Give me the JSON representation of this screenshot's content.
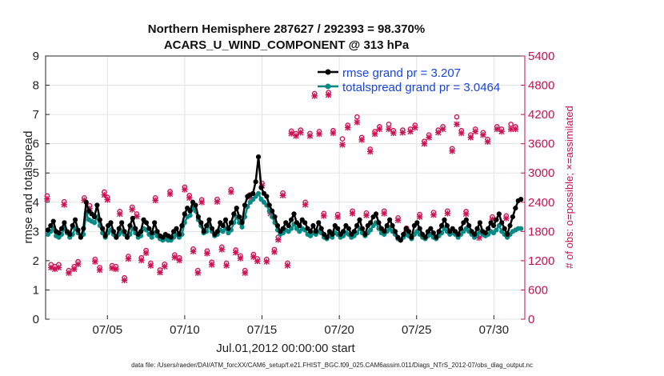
{
  "chart_data": {
    "type": "line",
    "title_line1": "Northern Hemisphere 287627 / 292393 = 98.370%",
    "title_line2": "ACARS_U_WIND_COMPONENT @ 313 hPa",
    "xlabel": "Jul.01,2012 00:00:00 start",
    "ylabel": "rmse and totalspread",
    "y2label": "# of obs: o=possible; ×=assimilated",
    "xlim": [
      1,
      32
    ],
    "ylim": [
      0,
      9
    ],
    "y2lim": [
      0,
      5400
    ],
    "x_ticks": [
      5,
      10,
      15,
      20,
      25,
      30
    ],
    "x_tick_labels": [
      "07/05",
      "07/10",
      "07/15",
      "07/20",
      "07/25",
      "07/30"
    ],
    "y_ticks": [
      0,
      1,
      2,
      3,
      4,
      5,
      6,
      7,
      8,
      9
    ],
    "y_tick_labels": [
      "0",
      "1",
      "2",
      "3",
      "4",
      "5",
      "6",
      "7",
      "8",
      "9"
    ],
    "y2_ticks": [
      0,
      600,
      1200,
      1800,
      2400,
      3000,
      3600,
      4200,
      4800,
      5400
    ],
    "y2_tick_labels": [
      "0",
      "600",
      "1200",
      "1800",
      "2400",
      "3000",
      "3600",
      "4200",
      "4800",
      "5400"
    ],
    "grid": true,
    "legend_position": "top-right",
    "series": [
      {
        "name": "rmse grand pr = 3.207",
        "color": "#000000",
        "values": [
          3.05,
          3.2,
          3.35,
          3.0,
          2.95,
          3.1,
          3.3,
          3.0,
          2.9,
          3.2,
          3.4,
          3.05,
          2.8,
          3.1,
          4.0,
          3.7,
          3.6,
          3.5,
          3.9,
          3.4,
          3.1,
          2.85,
          3.2,
          3.3,
          3.0,
          2.8,
          3.1,
          3.3,
          3.0,
          2.8,
          3.2,
          3.45,
          3.1,
          2.9,
          3.0,
          3.4,
          3.3,
          3.1,
          2.95,
          3.3,
          3.0,
          2.85,
          2.8,
          2.9,
          2.85,
          2.8,
          3.0,
          3.1,
          2.9,
          3.2,
          3.6,
          3.8,
          3.7,
          4.0,
          3.9,
          3.5,
          3.3,
          3.0,
          3.2,
          3.4,
          3.1,
          2.9,
          3.0,
          3.3,
          3.2,
          3.4,
          3.1,
          3.3,
          3.6,
          3.8,
          3.5,
          3.3,
          3.9,
          4.2,
          4.25,
          4.3,
          4.7,
          5.55,
          4.5,
          4.3,
          4.2,
          3.9,
          3.7,
          3.5,
          3.2,
          3.0,
          3.1,
          3.3,
          3.2,
          3.4,
          3.6,
          3.3,
          3.2,
          3.4,
          3.3,
          3.1,
          3.0,
          3.2,
          3.0,
          3.3,
          3.1,
          2.9,
          2.8,
          3.0,
          2.9,
          3.2,
          3.1,
          2.9,
          3.0,
          3.2,
          3.1,
          2.9,
          3.0,
          3.2,
          3.4,
          3.1,
          2.9,
          3.2,
          3.3,
          3.5,
          3.6,
          3.3,
          3.1,
          3.0,
          3.2,
          3.4,
          3.2,
          3.0,
          2.8,
          2.7,
          2.9,
          3.1,
          3.0,
          2.8,
          3.2,
          3.3,
          3.1,
          2.9,
          2.8,
          3.0,
          3.1,
          2.95,
          2.8,
          3.0,
          3.2,
          3.4,
          3.2,
          3.0,
          3.1,
          3.0,
          2.9,
          3.1,
          3.3,
          3.4,
          3.2,
          3.0,
          2.9,
          3.1,
          3.3,
          3.0,
          2.95,
          3.1,
          3.3,
          3.2,
          3.4,
          3.6,
          3.3,
          3.1,
          2.9,
          3.2,
          3.5,
          3.8,
          4.05,
          4.1
        ]
      },
      {
        "name": "totalspread grand pr = 3.0464",
        "color": "#0a8a85",
        "values": [
          2.9,
          3.0,
          3.1,
          2.85,
          2.8,
          2.9,
          3.1,
          2.95,
          2.8,
          2.9,
          3.1,
          2.95,
          2.85,
          2.9,
          3.6,
          3.4,
          3.35,
          3.3,
          3.5,
          3.2,
          2.95,
          2.8,
          2.95,
          3.05,
          2.9,
          2.8,
          2.9,
          3.0,
          2.9,
          2.8,
          2.9,
          3.1,
          2.95,
          2.8,
          2.85,
          3.1,
          3.05,
          2.9,
          2.8,
          2.95,
          2.85,
          2.75,
          2.7,
          2.75,
          2.7,
          2.7,
          2.8,
          2.9,
          2.8,
          2.9,
          3.3,
          3.5,
          3.55,
          3.8,
          3.7,
          3.4,
          3.2,
          2.95,
          3.0,
          3.2,
          3.0,
          2.85,
          2.9,
          3.05,
          3.0,
          3.1,
          2.95,
          3.05,
          3.3,
          3.5,
          3.3,
          3.15,
          3.5,
          3.85,
          4.0,
          4.1,
          4.2,
          4.3,
          4.1,
          4.0,
          3.9,
          3.7,
          3.5,
          3.3,
          3.05,
          2.9,
          2.95,
          3.05,
          3.0,
          3.1,
          3.25,
          3.1,
          3.0,
          3.1,
          3.05,
          2.9,
          2.85,
          2.95,
          2.9,
          3.0,
          2.95,
          2.8,
          2.75,
          2.85,
          2.8,
          2.95,
          2.9,
          2.8,
          2.85,
          2.95,
          2.9,
          2.8,
          2.85,
          2.95,
          3.1,
          2.95,
          2.85,
          2.95,
          3.05,
          3.2,
          3.3,
          3.1,
          2.95,
          2.9,
          3.0,
          3.1,
          3.0,
          2.9,
          2.75,
          2.7,
          2.8,
          2.9,
          2.85,
          2.75,
          2.9,
          3.0,
          2.9,
          2.8,
          2.75,
          2.85,
          2.9,
          2.8,
          2.75,
          2.85,
          2.95,
          3.1,
          3.0,
          2.9,
          2.95,
          2.9,
          2.8,
          2.9,
          3.0,
          3.1,
          3.0,
          2.9,
          2.8,
          2.9,
          3.0,
          2.9,
          2.85,
          2.9,
          3.0,
          2.95,
          3.05,
          3.2,
          3.0,
          2.9,
          2.8,
          2.9,
          3.0,
          3.05,
          3.1,
          3.1
        ]
      }
    ],
    "obs_series": [
      {
        "name": "possible",
        "marker": "o",
        "color": "#cc1454",
        "points": [
          [
            1.1,
            2530
          ],
          [
            1.35,
            1120
          ],
          [
            1.6,
            1080
          ],
          [
            1.85,
            1120
          ],
          [
            2.2,
            2410
          ],
          [
            2.5,
            1000
          ],
          [
            2.85,
            1080
          ],
          [
            3.1,
            1180
          ],
          [
            3.5,
            2490
          ],
          [
            3.85,
            2330
          ],
          [
            4.2,
            1230
          ],
          [
            4.5,
            1060
          ],
          [
            4.8,
            2610
          ],
          [
            5.0,
            2500
          ],
          [
            5.3,
            1100
          ],
          [
            5.55,
            1080
          ],
          [
            5.8,
            2210
          ],
          [
            6.1,
            850
          ],
          [
            6.35,
            1290
          ],
          [
            6.6,
            2300
          ],
          [
            6.9,
            2160
          ],
          [
            7.2,
            1260
          ],
          [
            7.5,
            1410
          ],
          [
            7.8,
            1150
          ],
          [
            8.1,
            2490
          ],
          [
            8.4,
            1010
          ],
          [
            8.7,
            1130
          ],
          [
            9.05,
            2620
          ],
          [
            9.35,
            1320
          ],
          [
            9.65,
            1260
          ],
          [
            10.0,
            2710
          ],
          [
            10.3,
            2540
          ],
          [
            10.55,
            1440
          ],
          [
            10.85,
            1000
          ],
          [
            11.1,
            2450
          ],
          [
            11.45,
            1400
          ],
          [
            11.75,
            1170
          ],
          [
            12.1,
            2460
          ],
          [
            12.4,
            1480
          ],
          [
            12.7,
            1150
          ],
          [
            13.0,
            2660
          ],
          [
            13.3,
            1420
          ],
          [
            13.6,
            1300
          ],
          [
            13.9,
            1000
          ],
          [
            14.2,
            2550
          ],
          [
            14.45,
            1330
          ],
          [
            14.7,
            1240
          ],
          [
            15.0,
            2790
          ],
          [
            15.3,
            1230
          ],
          [
            15.55,
            2220
          ],
          [
            15.8,
            1430
          ],
          [
            16.05,
            1680
          ],
          [
            16.35,
            2590
          ],
          [
            16.65,
            1150
          ],
          [
            16.9,
            3860
          ],
          [
            17.2,
            3810
          ],
          [
            17.5,
            3880
          ],
          [
            17.8,
            2400
          ],
          [
            18.1,
            3810
          ],
          [
            18.4,
            4630
          ],
          [
            18.7,
            3850
          ],
          [
            19.0,
            2170
          ],
          [
            19.3,
            4650
          ],
          [
            19.6,
            3870
          ],
          [
            19.9,
            2150
          ],
          [
            20.2,
            3700
          ],
          [
            20.55,
            3980
          ],
          [
            20.85,
            2220
          ],
          [
            21.15,
            4150
          ],
          [
            21.45,
            3730
          ],
          [
            21.75,
            2180
          ],
          [
            22.0,
            3490
          ],
          [
            22.3,
            3850
          ],
          [
            22.6,
            3950
          ],
          [
            22.9,
            2220
          ],
          [
            23.2,
            4000
          ],
          [
            23.5,
            3870
          ],
          [
            23.8,
            2080
          ],
          [
            24.1,
            3880
          ],
          [
            24.35,
            1870
          ],
          [
            24.6,
            3900
          ],
          [
            24.9,
            3980
          ],
          [
            25.2,
            2150
          ],
          [
            25.5,
            3650
          ],
          [
            25.8,
            3780
          ],
          [
            26.1,
            2190
          ],
          [
            26.4,
            3880
          ],
          [
            26.7,
            3950
          ],
          [
            27.0,
            2220
          ],
          [
            27.3,
            3500
          ],
          [
            27.6,
            4150
          ],
          [
            27.9,
            3870
          ],
          [
            28.2,
            2210
          ],
          [
            28.5,
            3780
          ],
          [
            28.8,
            3900
          ],
          [
            29.05,
            1720
          ],
          [
            29.3,
            3830
          ],
          [
            29.6,
            3690
          ],
          [
            29.9,
            2100
          ],
          [
            30.2,
            3950
          ],
          [
            30.5,
            3900
          ],
          [
            30.8,
            2120
          ],
          [
            31.1,
            4000
          ],
          [
            31.4,
            3950
          ]
        ]
      },
      {
        "name": "assimilated",
        "marker": "x",
        "color": "#cc1454",
        "points": [
          [
            1.1,
            2470
          ],
          [
            1.35,
            1060
          ],
          [
            1.6,
            1030
          ],
          [
            1.85,
            1060
          ],
          [
            2.2,
            2350
          ],
          [
            2.5,
            950
          ],
          [
            2.85,
            1030
          ],
          [
            3.1,
            1130
          ],
          [
            3.5,
            2440
          ],
          [
            3.85,
            2270
          ],
          [
            4.2,
            1180
          ],
          [
            4.5,
            1010
          ],
          [
            4.8,
            2550
          ],
          [
            5.0,
            2450
          ],
          [
            5.3,
            1050
          ],
          [
            5.55,
            1030
          ],
          [
            5.8,
            2160
          ],
          [
            6.1,
            800
          ],
          [
            6.35,
            1240
          ],
          [
            6.6,
            2250
          ],
          [
            6.9,
            2110
          ],
          [
            7.2,
            1210
          ],
          [
            7.5,
            1360
          ],
          [
            7.8,
            1100
          ],
          [
            8.1,
            2440
          ],
          [
            8.4,
            960
          ],
          [
            8.7,
            1080
          ],
          [
            9.05,
            2570
          ],
          [
            9.35,
            1270
          ],
          [
            9.65,
            1210
          ],
          [
            10.0,
            2660
          ],
          [
            10.3,
            2490
          ],
          [
            10.55,
            1390
          ],
          [
            10.85,
            950
          ],
          [
            11.1,
            2400
          ],
          [
            11.45,
            1350
          ],
          [
            11.75,
            1120
          ],
          [
            12.1,
            2410
          ],
          [
            12.4,
            1430
          ],
          [
            12.7,
            1100
          ],
          [
            13.0,
            2610
          ],
          [
            13.3,
            1370
          ],
          [
            13.6,
            1250
          ],
          [
            13.9,
            950
          ],
          [
            14.2,
            2500
          ],
          [
            14.45,
            1280
          ],
          [
            14.7,
            1190
          ],
          [
            15.0,
            2740
          ],
          [
            15.3,
            1180
          ],
          [
            15.55,
            2170
          ],
          [
            15.8,
            1380
          ],
          [
            16.05,
            1630
          ],
          [
            16.35,
            2540
          ],
          [
            16.65,
            1100
          ],
          [
            16.9,
            3810
          ],
          [
            17.2,
            3760
          ],
          [
            17.5,
            3830
          ],
          [
            17.8,
            2350
          ],
          [
            18.1,
            3760
          ],
          [
            18.4,
            4580
          ],
          [
            18.7,
            3800
          ],
          [
            19.0,
            2120
          ],
          [
            19.3,
            4600
          ],
          [
            19.6,
            3820
          ],
          [
            19.9,
            2100
          ],
          [
            20.2,
            3580
          ],
          [
            20.55,
            3930
          ],
          [
            20.85,
            2170
          ],
          [
            21.15,
            4040
          ],
          [
            21.45,
            3680
          ],
          [
            21.75,
            2130
          ],
          [
            22.0,
            3440
          ],
          [
            22.3,
            3800
          ],
          [
            22.6,
            3900
          ],
          [
            22.9,
            2170
          ],
          [
            23.2,
            3900
          ],
          [
            23.5,
            3820
          ],
          [
            23.8,
            2030
          ],
          [
            24.1,
            3830
          ],
          [
            24.35,
            1820
          ],
          [
            24.6,
            3850
          ],
          [
            24.9,
            3930
          ],
          [
            25.2,
            2100
          ],
          [
            25.5,
            3600
          ],
          [
            25.8,
            3730
          ],
          [
            26.1,
            2140
          ],
          [
            26.4,
            3830
          ],
          [
            26.7,
            3900
          ],
          [
            27.0,
            2170
          ],
          [
            27.3,
            3450
          ],
          [
            27.6,
            4000
          ],
          [
            27.9,
            3820
          ],
          [
            28.2,
            2160
          ],
          [
            28.5,
            3730
          ],
          [
            28.8,
            3850
          ],
          [
            29.05,
            1670
          ],
          [
            29.3,
            3780
          ],
          [
            29.6,
            3640
          ],
          [
            29.9,
            2050
          ],
          [
            30.2,
            3900
          ],
          [
            30.5,
            3850
          ],
          [
            30.8,
            2070
          ],
          [
            31.1,
            3900
          ],
          [
            31.4,
            3900
          ]
        ]
      }
    ]
  },
  "footer": "data file: /Users/raeder/DAI/ATM_forcXX/CAM6_setup/f.e21.FHIST_BGC.f09_025.CAM6assim.011/Diags_NTrS_2012-07/obs_diag_output.nc"
}
